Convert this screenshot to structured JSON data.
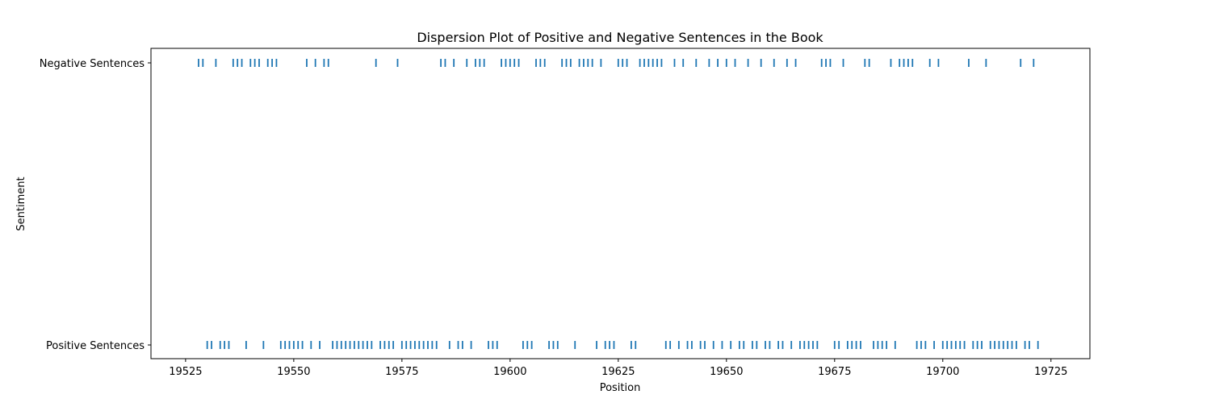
{
  "chart_data": {
    "type": "scatter",
    "title": "Dispersion Plot of Positive and Negative Sentences in the Book",
    "xlabel": "Position",
    "ylabel": "Sentiment",
    "xlim": [
      19517,
      19734
    ],
    "xticks": [
      19525,
      19550,
      19575,
      19600,
      19625,
      19650,
      19675,
      19700,
      19725
    ],
    "categories": [
      "Positive Sentences",
      "Negative Sentences"
    ],
    "marker": "|",
    "color": "#1f77b4",
    "grid": false,
    "series": [
      {
        "name": "Negative Sentences",
        "x": [
          19528,
          19529,
          19532,
          19536,
          19537,
          19538,
          19540,
          19541,
          19542,
          19544,
          19545,
          19546,
          19553,
          19555,
          19557,
          19558,
          19569,
          19574,
          19584,
          19585,
          19587,
          19590,
          19592,
          19593,
          19594,
          19598,
          19599,
          19600,
          19601,
          19602,
          19606,
          19607,
          19608,
          19612,
          19613,
          19614,
          19616,
          19617,
          19618,
          19619,
          19621,
          19625,
          19626,
          19627,
          19630,
          19631,
          19632,
          19633,
          19634,
          19635,
          19638,
          19640,
          19643,
          19646,
          19648,
          19650,
          19652,
          19655,
          19658,
          19661,
          19664,
          19666,
          19672,
          19673,
          19674,
          19677,
          19682,
          19683,
          19688,
          19690,
          19691,
          19692,
          19693,
          19697,
          19699,
          19706,
          19710,
          19718,
          19721
        ]
      },
      {
        "name": "Positive Sentences",
        "x": [
          19530,
          19531,
          19533,
          19534,
          19535,
          19539,
          19543,
          19547,
          19548,
          19549,
          19550,
          19551,
          19552,
          19554,
          19556,
          19559,
          19560,
          19561,
          19562,
          19563,
          19564,
          19565,
          19566,
          19567,
          19568,
          19570,
          19571,
          19572,
          19573,
          19575,
          19576,
          19577,
          19578,
          19579,
          19580,
          19581,
          19582,
          19583,
          19586,
          19588,
          19589,
          19591,
          19595,
          19596,
          19597,
          19603,
          19604,
          19605,
          19609,
          19610,
          19611,
          19615,
          19620,
          19622,
          19623,
          19624,
          19628,
          19629,
          19636,
          19637,
          19639,
          19641,
          19642,
          19644,
          19645,
          19647,
          19649,
          19651,
          19653,
          19654,
          19656,
          19657,
          19659,
          19660,
          19662,
          19663,
          19665,
          19667,
          19668,
          19669,
          19670,
          19671,
          19675,
          19676,
          19678,
          19679,
          19680,
          19681,
          19684,
          19685,
          19686,
          19687,
          19689,
          19694,
          19695,
          19696,
          19698,
          19700,
          19701,
          19702,
          19703,
          19704,
          19705,
          19707,
          19708,
          19709,
          19711,
          19712,
          19713,
          19714,
          19715,
          19716,
          19717,
          19719,
          19720,
          19722
        ]
      }
    ]
  }
}
